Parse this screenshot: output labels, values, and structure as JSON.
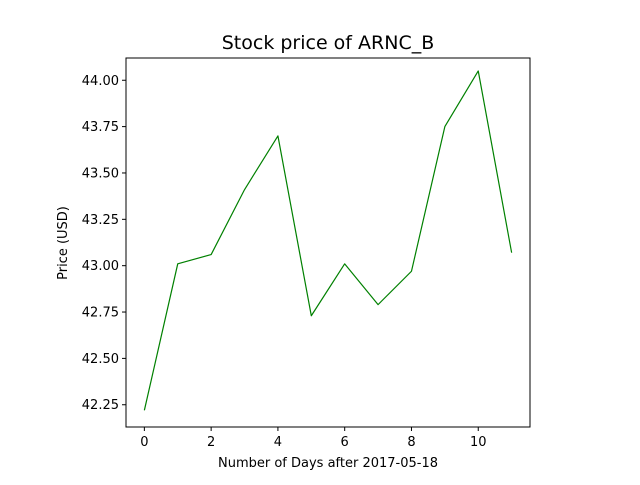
{
  "chart_data": {
    "type": "line",
    "title": "Stock price of ARNC_B",
    "xlabel": "Number of Days after 2017-05-18",
    "ylabel": "Price (USD)",
    "x": [
      0,
      1,
      2,
      3,
      4,
      5,
      6,
      7,
      8,
      9,
      10,
      11
    ],
    "series": [
      {
        "values": [
          42.22,
          43.01,
          43.06,
          43.41,
          43.7,
          42.73,
          43.01,
          42.79,
          42.97,
          43.75,
          44.05,
          43.07
        ],
        "color": "#008000"
      }
    ],
    "xlim": [
      -0.55,
      11.55
    ],
    "ylim": [
      42.13,
      44.12
    ],
    "xticks": [
      0,
      2,
      4,
      6,
      8,
      10
    ],
    "xtick_labels": [
      "0",
      "2",
      "4",
      "6",
      "8",
      "10"
    ],
    "yticks": [
      42.25,
      42.5,
      42.75,
      43.0,
      43.25,
      43.5,
      43.75,
      44.0
    ],
    "ytick_labels": [
      "42.25",
      "42.50",
      "42.75",
      "43.00",
      "43.25",
      "43.50",
      "43.75",
      "44.00"
    ],
    "grid": false,
    "legend": "none"
  }
}
